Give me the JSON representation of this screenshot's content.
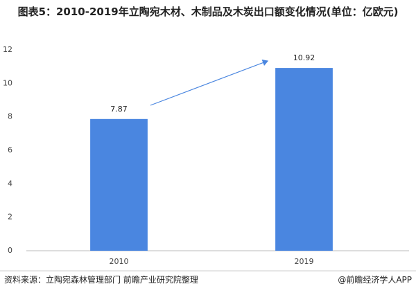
{
  "chart_data": {
    "type": "bar",
    "title": "图表5：2010-2019年立陶宛木材、木制品及木炭出口额变化情况(单位：亿欧元)",
    "categories": [
      "2010",
      "2019"
    ],
    "values": [
      7.87,
      10.92
    ],
    "color": "#4a86e0",
    "ylim": [
      0,
      12
    ],
    "yticks": [
      0,
      2,
      4,
      6,
      8,
      10,
      12
    ],
    "grid": false
  },
  "footer": {
    "source": "资料来源：立陶宛森林管理部门 前瞻产业研究院整理",
    "credit": "@前瞻经济学人APP"
  }
}
